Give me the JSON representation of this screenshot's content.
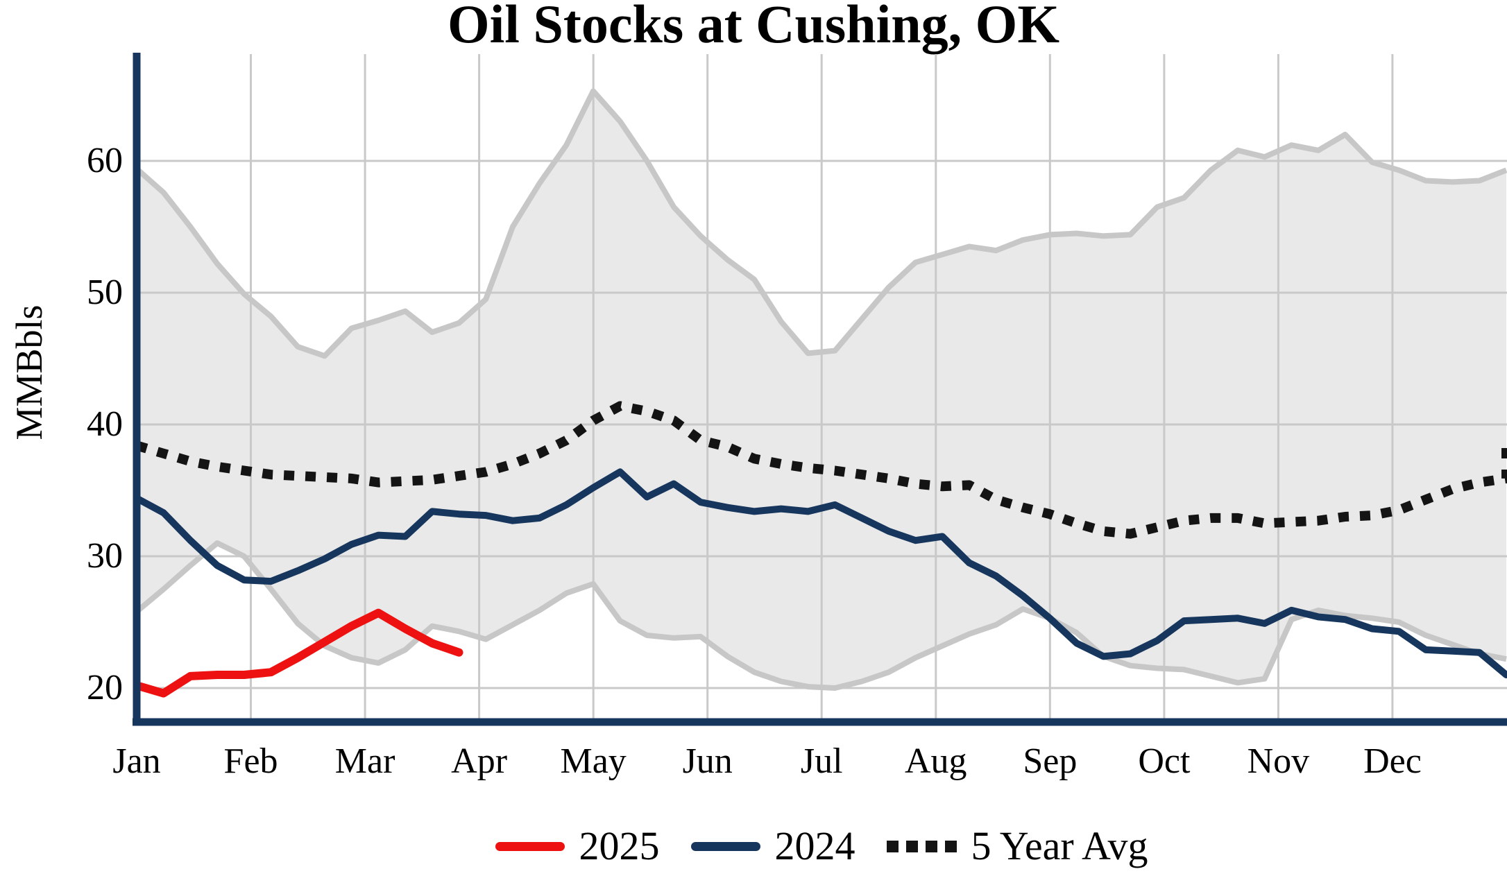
{
  "title": "Oil Stocks at Cushing, OK",
  "y_axis": {
    "label": "MMBbls",
    "ticks": [
      20,
      30,
      40,
      50,
      60
    ]
  },
  "x_axis": {
    "months": [
      "Jan",
      "Feb",
      "Mar",
      "Apr",
      "May",
      "Jun",
      "Jul",
      "Aug",
      "Sep",
      "Oct",
      "Nov",
      "Dec"
    ]
  },
  "legend": {
    "items": [
      {
        "label": "2025",
        "style": "solid",
        "color": "#ee1111"
      },
      {
        "label": "2024",
        "style": "solid",
        "color": "#17365d"
      },
      {
        "label": "5 Year Avg",
        "style": "dotted",
        "color": "#141414"
      }
    ]
  },
  "colors": {
    "accent_red": "#ee1111",
    "accent_navy": "#17365d",
    "avg_black": "#141414",
    "band_fill": "#e9e9e9",
    "band_outline": "#c7c7c7",
    "gridline": "#c9c9c9",
    "axis": "#17365d",
    "background": "#ffffff"
  },
  "chart_data": {
    "type": "line",
    "title": "Oil Stocks at Cushing, OK",
    "xlabel": "",
    "ylabel": "MMBbls",
    "x_unit": "week_of_year",
    "weeks": 52,
    "x_tick_labels": [
      "Jan",
      "Feb",
      "Mar",
      "Apr",
      "May",
      "Jun",
      "Jul",
      "Aug",
      "Sep",
      "Oct",
      "Nov",
      "Dec"
    ],
    "yticks": [
      20,
      30,
      40,
      50,
      60
    ],
    "ylim": [
      17.5,
      68
    ],
    "grid": true,
    "legend_position": "bottom",
    "band": {
      "name": "5_year_range",
      "max": [
        59.4,
        57.6,
        55.0,
        52.2,
        49.9,
        48.2,
        45.9,
        45.2,
        47.3,
        47.9,
        48.6,
        47.0,
        47.7,
        49.5,
        55.0,
        58.3,
        61.2,
        65.3,
        63.0,
        60.0,
        56.5,
        54.3,
        52.5,
        51.0,
        47.8,
        45.4,
        45.6,
        48.0,
        50.4,
        52.3,
        52.9,
        53.5,
        53.2,
        54.0,
        54.4,
        54.5,
        54.3,
        54.4,
        56.5,
        57.2,
        59.3,
        60.8,
        60.3,
        61.2,
        60.8,
        62.0,
        59.9,
        59.3,
        58.5,
        58.4,
        58.5,
        59.3
      ],
      "min": [
        25.8,
        27.5,
        29.3,
        31.0,
        30.0,
        27.5,
        24.9,
        23.2,
        22.3,
        21.9,
        22.9,
        24.7,
        24.3,
        23.7,
        24.8,
        25.9,
        27.2,
        27.9,
        25.1,
        24.0,
        23.8,
        23.9,
        22.4,
        21.2,
        20.5,
        20.1,
        20.0,
        20.5,
        21.2,
        22.3,
        23.2,
        24.1,
        24.8,
        26.0,
        25.3,
        24.2,
        22.4,
        21.7,
        21.5,
        21.4,
        20.9,
        20.4,
        20.7,
        25.2,
        25.9,
        25.5,
        25.3,
        25.0,
        24.0,
        23.3,
        22.6,
        22.2
      ]
    },
    "series": [
      {
        "name": "5 Year Avg",
        "style": "dotted",
        "color": "#141414",
        "values": [
          38.4,
          37.8,
          37.2,
          36.8,
          36.5,
          36.2,
          36.1,
          36.0,
          35.9,
          35.6,
          35.7,
          35.8,
          36.1,
          36.4,
          37.0,
          37.8,
          38.8,
          40.3,
          41.4,
          41.0,
          40.3,
          38.8,
          38.3,
          37.4,
          37.0,
          36.7,
          36.5,
          36.2,
          35.9,
          35.5,
          35.3,
          35.4,
          34.3,
          33.7,
          33.2,
          32.5,
          31.9,
          31.7,
          32.2,
          32.7,
          32.9,
          32.9,
          32.5,
          32.6,
          32.7,
          33.0,
          33.1,
          33.5,
          34.3,
          35.1,
          35.6,
          35.9
        ],
        "end_jump_value": 39.0
      },
      {
        "name": "2024",
        "style": "solid",
        "color": "#17365d",
        "values": [
          34.4,
          33.3,
          31.2,
          29.3,
          28.2,
          28.1,
          28.9,
          29.8,
          30.9,
          31.6,
          31.5,
          33.4,
          33.2,
          33.1,
          32.7,
          32.9,
          33.9,
          35.2,
          36.4,
          34.5,
          35.5,
          34.1,
          33.7,
          33.4,
          33.6,
          33.4,
          33.9,
          32.9,
          31.9,
          31.2,
          31.5,
          29.5,
          28.5,
          27.0,
          25.3,
          23.4,
          22.4,
          22.6,
          23.6,
          25.1,
          25.2,
          25.3,
          24.9,
          25.9,
          25.4,
          25.2,
          24.5,
          24.3,
          22.9,
          22.8,
          22.7,
          21.0
        ]
      },
      {
        "name": "2025",
        "style": "solid",
        "color": "#ee1111",
        "values": [
          20.2,
          19.6,
          20.9,
          21.0,
          21.0,
          21.2,
          22.3,
          23.5,
          24.7,
          25.7,
          24.5,
          23.4,
          22.7
        ]
      }
    ]
  }
}
